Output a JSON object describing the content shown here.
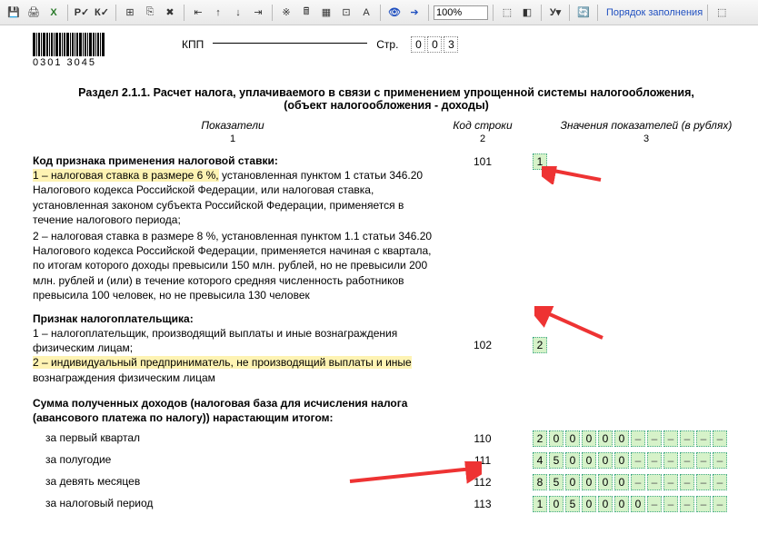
{
  "toolbar": {
    "zoom": "100%",
    "link_label": "Порядок заполнения"
  },
  "header": {
    "kpp_label": "КПП",
    "page_label": "Стр.",
    "page_number": [
      "0",
      "0",
      "3"
    ],
    "barcode_text": "0301 3045"
  },
  "section_title_line1": "Раздел 2.1.1. Расчет налога, уплачиваемого в связи с применением упрощенной системы налогообложения,",
  "section_title_line2": "(объект налогообложения - доходы)",
  "col_heads": {
    "c1": "Показатели",
    "c1n": "1",
    "c2": "Код строки",
    "c2n": "2",
    "c3": "Значения показателей (в рублях)",
    "c3n": "3"
  },
  "block1": {
    "title": "Код признака применения налоговой ставки:",
    "hl": "1 – налоговая ставка в размере 6 %,",
    "rest1": " установленная пунктом 1 статьи 346.20 Налогового кодекса Российской Федерации, или налоговая ставка, установленная законом субъекта Российской Федерации, применяется в течение налогового периода;",
    "rest2": "2 – налоговая ставка в размере 8 %, установленная пунктом 1.1 статьи 346.20 Налогового кодекса Российской Федерации, применяется начиная с квартала, по итогам которого доходы превысили 150 млн. рублей, но не превысили 200 млн. рублей и (или) в течение которого средняя численность работников превысила 100 человек, но не превысила 130 человек",
    "code": "101",
    "value": "1"
  },
  "block2": {
    "title": "Признак налогоплательщика:",
    "line1": "1 – налогоплательщик, производящий выплаты и иные вознаграждения физическим лицам;",
    "hl": "2 – индивидуальный предприниматель, не производящий выплаты и иные",
    "rest": " вознаграждения физическим лицам",
    "code": "102",
    "value": "2"
  },
  "block3": {
    "title": "Сумма полученных доходов (налоговая база для исчисления налога (авансового платежа по налогу)) нарастающим итогом:",
    "rows": [
      {
        "label": "за первый квартал",
        "code": "110",
        "digits": [
          "2",
          "0",
          "0",
          "0",
          "0",
          "0",
          "",
          "",
          "",
          "",
          "",
          ""
        ]
      },
      {
        "label": "за полугодие",
        "code": "111",
        "digits": [
          "4",
          "5",
          "0",
          "0",
          "0",
          "0",
          "",
          "",
          "",
          "",
          "",
          ""
        ]
      },
      {
        "label": "за девять месяцев",
        "code": "112",
        "digits": [
          "8",
          "5",
          "0",
          "0",
          "0",
          "0",
          "",
          "",
          "",
          "",
          "",
          ""
        ]
      },
      {
        "label": "за налоговый период",
        "code": "113",
        "digits": [
          "1",
          "0",
          "5",
          "0",
          "0",
          "0",
          "0",
          "",
          "",
          "",
          "",
          ""
        ]
      }
    ]
  }
}
